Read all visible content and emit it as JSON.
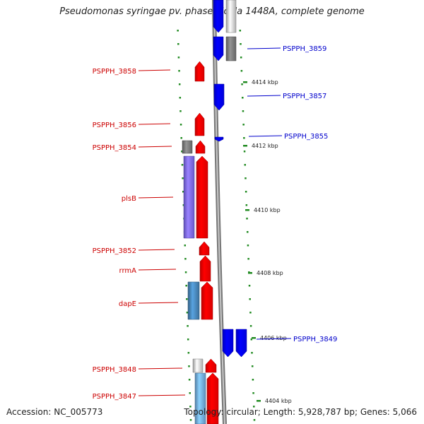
{
  "title": "Pseudomonas syringae pv. phaseolicola 1448A, complete genome",
  "footer": {
    "accession": "Accession: NC_005773",
    "topology": "Topology: circular; Length: 5,928,787 bp; Genes: 5,066"
  },
  "colors": {
    "forward": "#ff0000",
    "reverse": "#0000ff",
    "forward_label": "#cc0000",
    "reverse_label": "#0000cc",
    "backbone": "#999999",
    "tick": "#228b22",
    "grey_feature": "#777777",
    "light_grey_feature": "#cccccc",
    "purple_feature": "#7b68ee",
    "steelblue_feature": "#4682b4",
    "lightblue_feature": "#6fa8dc"
  },
  "scale_labels": [
    "4414 kbp",
    "4412 kbp",
    "4410 kbp",
    "4408 kbp",
    "4406 kbp",
    "4404 kbp"
  ],
  "forward_genes": [
    "PSPPH_3858",
    "PSPPH_3856",
    "PSPPH_3854",
    "plsB",
    "PSPPH_3852",
    "rrmA",
    "dapE",
    "PSPPH_3848",
    "PSPPH_3847"
  ],
  "reverse_genes": [
    "PSPPH_3859",
    "PSPPH_3857",
    "PSPPH_3855",
    "PSPPH_3849"
  ]
}
